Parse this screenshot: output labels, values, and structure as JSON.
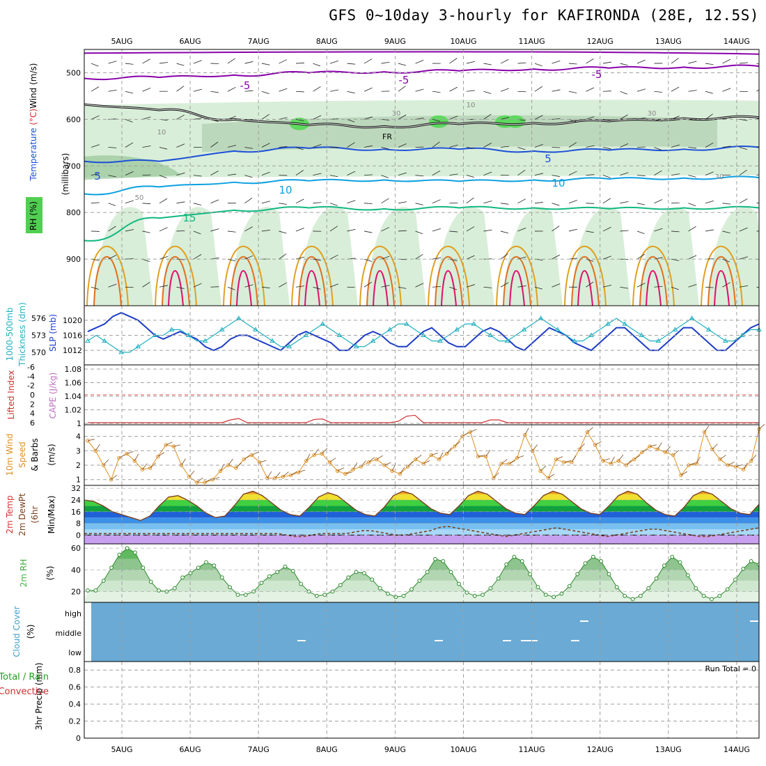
{
  "title": "GFS 0~10day 3-hourly for KAFIRONDA (28E, 12.5S)",
  "run_total_label": "Run Total = 0",
  "colors": {
    "axis": "#000000",
    "grid": "#a0a0a0",
    "rh_fill": "#d8eed8",
    "rh_fill2": "#bcd8bc",
    "rh_fill3": "#8ec08e",
    "rh_fill4": "#5ed85e",
    "freezing": "#000000",
    "temp_m5": "#8800aa",
    "temp_5": "#1c4fd8",
    "temp_10": "#0aa0e0",
    "temp_15": "#10b880",
    "temp_20": "#e0a020",
    "temp_25": "#e07020",
    "temp_30": "#e0106e",
    "slp": "#1c3cc8",
    "thickness": "#20b0c0",
    "lifted_index": "#d03030",
    "wind_speed": "#e09020",
    "barb": "#7a4a20",
    "dewpoint": "#7a4020",
    "rh2m": "#40b040",
    "cloud": "#6aaad4",
    "precip": "#20a020"
  },
  "chart_data": [
    {
      "type": "heatmap",
      "panel": "upper-air",
      "title": "",
      "xlabel": "",
      "ylabel": "(millibars)",
      "ylabel_parts": [
        "Temperature (°C)",
        "Wind (m/s)",
        "RH (%)"
      ],
      "x_categories": [
        "5AUG",
        "6AUG",
        "7AUG",
        "8AUG",
        "9AUG",
        "10AUG",
        "11AUG",
        "12AUG",
        "13AUG",
        "14AUG"
      ],
      "y_ticks": [
        500,
        600,
        700,
        800,
        900
      ],
      "ylim": [
        1000,
        450
      ],
      "contour_labels": [
        "-5",
        "-5",
        "-5",
        "5",
        "5",
        "10",
        "10",
        "15",
        "FR",
        "10",
        "10",
        "30",
        "30",
        "30",
        "50"
      ],
      "freezing_level_label": "FR",
      "isotherms": [
        {
          "name": "-5",
          "level_hpa": [
            512,
            510,
            505,
            500,
            498,
            496,
            492,
            490,
            488,
            486
          ]
        },
        {
          "name": "0",
          "level_hpa": [
            568,
            580,
            600,
            612,
            615,
            610,
            608,
            604,
            598,
            596
          ]
        },
        {
          "name": "5",
          "level_hpa": [
            690,
            690,
            668,
            662,
            664,
            664,
            668,
            666,
            664,
            660
          ]
        },
        {
          "name": "10",
          "level_hpa": [
            760,
            745,
            735,
            732,
            730,
            733,
            730,
            728,
            726,
            725
          ]
        },
        {
          "name": "15",
          "level_hpa": [
            860,
            812,
            795,
            790,
            792,
            790,
            790,
            792,
            790,
            790
          ]
        }
      ]
    },
    {
      "type": "line",
      "panel": "slp-thickness",
      "ylabel_left": "1000-500mb Thickness (dm)",
      "ylabel_right": "SLP (mb)",
      "y_ticks_left": [
        570,
        573,
        576
      ],
      "y_ticks_right": [
        1012,
        1016,
        1020
      ],
      "series": [
        {
          "name": "SLP",
          "values": [
            1017,
            1018,
            1019,
            1021,
            1022,
            1021,
            1020,
            1018,
            1016,
            1015,
            1016,
            1017,
            1016,
            1015,
            1013,
            1012,
            1013,
            1015,
            1016,
            1016,
            1015,
            1014,
            1013,
            1012,
            1014,
            1016,
            1017,
            1016,
            1015,
            1014,
            1012,
            1012,
            1014,
            1016,
            1017,
            1016,
            1014,
            1013,
            1013,
            1015,
            1017,
            1018,
            1016,
            1014,
            1013,
            1013,
            1015,
            1017,
            1018,
            1017,
            1015,
            1013,
            1012,
            1014,
            1016,
            1018,
            1017,
            1016,
            1014,
            1013,
            1012,
            1014,
            1016,
            1018,
            1018,
            1016,
            1014,
            1012,
            1012,
            1014,
            1016,
            1018,
            1018,
            1016,
            1014,
            1012,
            1012,
            1014,
            1016,
            1018,
            1019
          ]
        },
        {
          "name": "Thickness",
          "values": [
            572,
            573,
            572,
            571,
            570,
            570,
            571,
            572,
            573,
            573,
            574,
            574,
            573,
            572,
            572,
            573,
            574,
            575,
            576,
            575,
            574,
            573,
            572,
            571,
            571,
            572,
            573,
            574,
            575,
            574,
            573,
            572,
            571,
            571,
            572,
            573,
            574,
            575,
            575,
            574,
            573,
            572,
            572,
            573,
            574,
            575,
            575,
            574,
            573,
            572,
            572,
            573,
            574,
            575,
            576,
            575,
            574,
            573,
            572,
            572,
            573,
            574,
            575,
            576,
            575,
            574,
            573,
            572,
            572,
            573,
            574,
            575,
            576,
            575,
            574,
            573,
            572,
            572,
            573,
            574,
            574
          ]
        }
      ]
    },
    {
      "type": "line",
      "panel": "stability",
      "ylabel_left": "Lifted Index",
      "ylabel_right": "CAPE (J/kg)",
      "y_ticks_left": [
        6,
        4,
        2,
        0,
        -2,
        -4,
        -6
      ],
      "y_ticks_left_labels": [
        "6",
        "4",
        "2",
        "0",
        "-2",
        "-4",
        "-6"
      ],
      "y_ticks_right": [
        1,
        1.02,
        1.04,
        1.06,
        1.08
      ],
      "y_ticks_right_labels": [
        "1",
        "1.02",
        "1.04",
        "1.06",
        "1.08"
      ],
      "zero_line": 0,
      "series": [
        {
          "name": "Lifted Index",
          "values": [
            6,
            6,
            6,
            6,
            6,
            6,
            6,
            6,
            6,
            6,
            6,
            6,
            6,
            6,
            6,
            6,
            6,
            5.4,
            5.1,
            6,
            6,
            6,
            6,
            6,
            6,
            6,
            6,
            5.3,
            5.2,
            6,
            6,
            6,
            6,
            6,
            6,
            6,
            6,
            5.7,
            4.6,
            4.4,
            6,
            6,
            6,
            6,
            6,
            6,
            6,
            6,
            5.4,
            5.4,
            6,
            6,
            6,
            6,
            6,
            6,
            6,
            6,
            6,
            6,
            6,
            6,
            6,
            6,
            6,
            6,
            6,
            6,
            6,
            6,
            6,
            6,
            6,
            6,
            6,
            6,
            6,
            6,
            6,
            6,
            6
          ]
        }
      ]
    },
    {
      "type": "line",
      "panel": "wind10m",
      "ylabel": "10m Wind Speed & Barbs (m/s)",
      "y_ticks": [
        1,
        2,
        3,
        4
      ],
      "ylim": [
        0.6,
        4.8
      ],
      "series": [
        {
          "name": "10m Wind Speed",
          "values": [
            3.7,
            3.0,
            2.0,
            1.0,
            2.5,
            2.8,
            2.3,
            1.7,
            1.8,
            2.6,
            3.4,
            3.3,
            2.0,
            1.2,
            0.8,
            0.8,
            1.0,
            1.6,
            2.0,
            1.8,
            2.4,
            2.7,
            2.2,
            1.1,
            1.1,
            1.2,
            1.3,
            1.5,
            2.3,
            2.7,
            2.8,
            2.2,
            1.6,
            1.4,
            1.7,
            1.9,
            2.2,
            2.4,
            2.0,
            1.6,
            1.4,
            1.9,
            2.4,
            2.1,
            2.7,
            2.4,
            2.8,
            3.3,
            4.0,
            4.3,
            2.6,
            2.6,
            1.1,
            2.1,
            2.1,
            2.5,
            4.1,
            3.0,
            1.6,
            1.1,
            2.4,
            2.2,
            2.2,
            3.1,
            4.3,
            3.4,
            2.3,
            2.1,
            2.3,
            2.0,
            2.4,
            2.9,
            3.3,
            3.1,
            2.9,
            2.7,
            1.3,
            2.0,
            2.1,
            4.3,
            3.1,
            2.4,
            2.0,
            1.9,
            1.7,
            2.3,
            4.5
          ]
        }
      ]
    },
    {
      "type": "area",
      "panel": "temp2m",
      "ylabel": "2m Temp 2m DewPt (6hr Min/Max) (°C)",
      "y_ticks": [
        0,
        8,
        16,
        24,
        32
      ],
      "ylim": [
        -6,
        34
      ],
      "series": [
        {
          "name": "2m Temp",
          "values": [
            24,
            23,
            20,
            16,
            14,
            12,
            10,
            13,
            20,
            26,
            27,
            24,
            20,
            15,
            12,
            13,
            20,
            28,
            30,
            27,
            22,
            17,
            14,
            13,
            19,
            26,
            29,
            27,
            22,
            17,
            14,
            13,
            19,
            27,
            30,
            28,
            23,
            18,
            15,
            14,
            20,
            27,
            30,
            28,
            23,
            18,
            15,
            14,
            20,
            27,
            30,
            28,
            23,
            18,
            15,
            14,
            20,
            27,
            30,
            28,
            22,
            17,
            14,
            13,
            19,
            27,
            30,
            28,
            23,
            18,
            15,
            14,
            21
          ]
        },
        {
          "name": "2m DewPt",
          "values": [
            1,
            1,
            1,
            1,
            1,
            1,
            1,
            1,
            1,
            1,
            1,
            1,
            1,
            1,
            1,
            1,
            1,
            1,
            1,
            1,
            1,
            1,
            1,
            1,
            0,
            -1,
            -1,
            0,
            1,
            1,
            1,
            1,
            2,
            3,
            3,
            2,
            1,
            0,
            0,
            1,
            2,
            3,
            5,
            6,
            5,
            4,
            3,
            2,
            1,
            0,
            -1,
            0,
            1,
            2,
            3,
            4,
            5,
            4,
            3,
            2,
            1,
            0,
            -1,
            0,
            1,
            2,
            3,
            4,
            4,
            3,
            2,
            1,
            0,
            -1,
            -1,
            0,
            1,
            2,
            3,
            4,
            5
          ]
        }
      ]
    },
    {
      "type": "area",
      "panel": "rh2m",
      "ylabel": "2m RH (%)",
      "y_ticks": [
        20,
        40,
        60
      ],
      "ylim": [
        10,
        64
      ],
      "series": [
        {
          "name": "2m RH",
          "values": [
            21,
            21,
            30,
            42,
            54,
            60,
            56,
            42,
            29,
            21,
            20,
            23,
            33,
            37,
            42,
            47,
            44,
            33,
            24,
            17,
            17,
            20,
            28,
            34,
            38,
            43,
            39,
            27,
            20,
            16,
            17,
            20,
            26,
            33,
            38,
            37,
            31,
            23,
            18,
            15,
            16,
            22,
            30,
            38,
            50,
            48,
            38,
            27,
            19,
            16,
            17,
            23,
            32,
            45,
            52,
            48,
            36,
            24,
            17,
            15,
            18,
            25,
            36,
            46,
            52,
            48,
            36,
            24,
            16,
            13,
            16,
            23,
            32,
            44,
            52,
            47,
            35,
            23,
            16,
            13,
            16,
            22,
            31,
            41,
            48,
            45
          ]
        }
      ]
    },
    {
      "type": "heatmap",
      "panel": "cloud",
      "ylabel": "Cloud Cover (%)",
      "y_categories": [
        "high",
        "middle",
        "low"
      ],
      "coverage": "overcast"
    },
    {
      "type": "bar",
      "panel": "precip",
      "ylabel": "3hr Precip (mm)",
      "ylabel_legend": [
        "Total / Rain",
        "Convective"
      ],
      "y_ticks": [
        0,
        0.2,
        0.4,
        0.6,
        0.8
      ],
      "y_tick_labels": [
        "0",
        "0.2",
        "0.4",
        "0.6",
        "0.8"
      ],
      "ylim": [
        0,
        0.9
      ],
      "values": []
    }
  ]
}
